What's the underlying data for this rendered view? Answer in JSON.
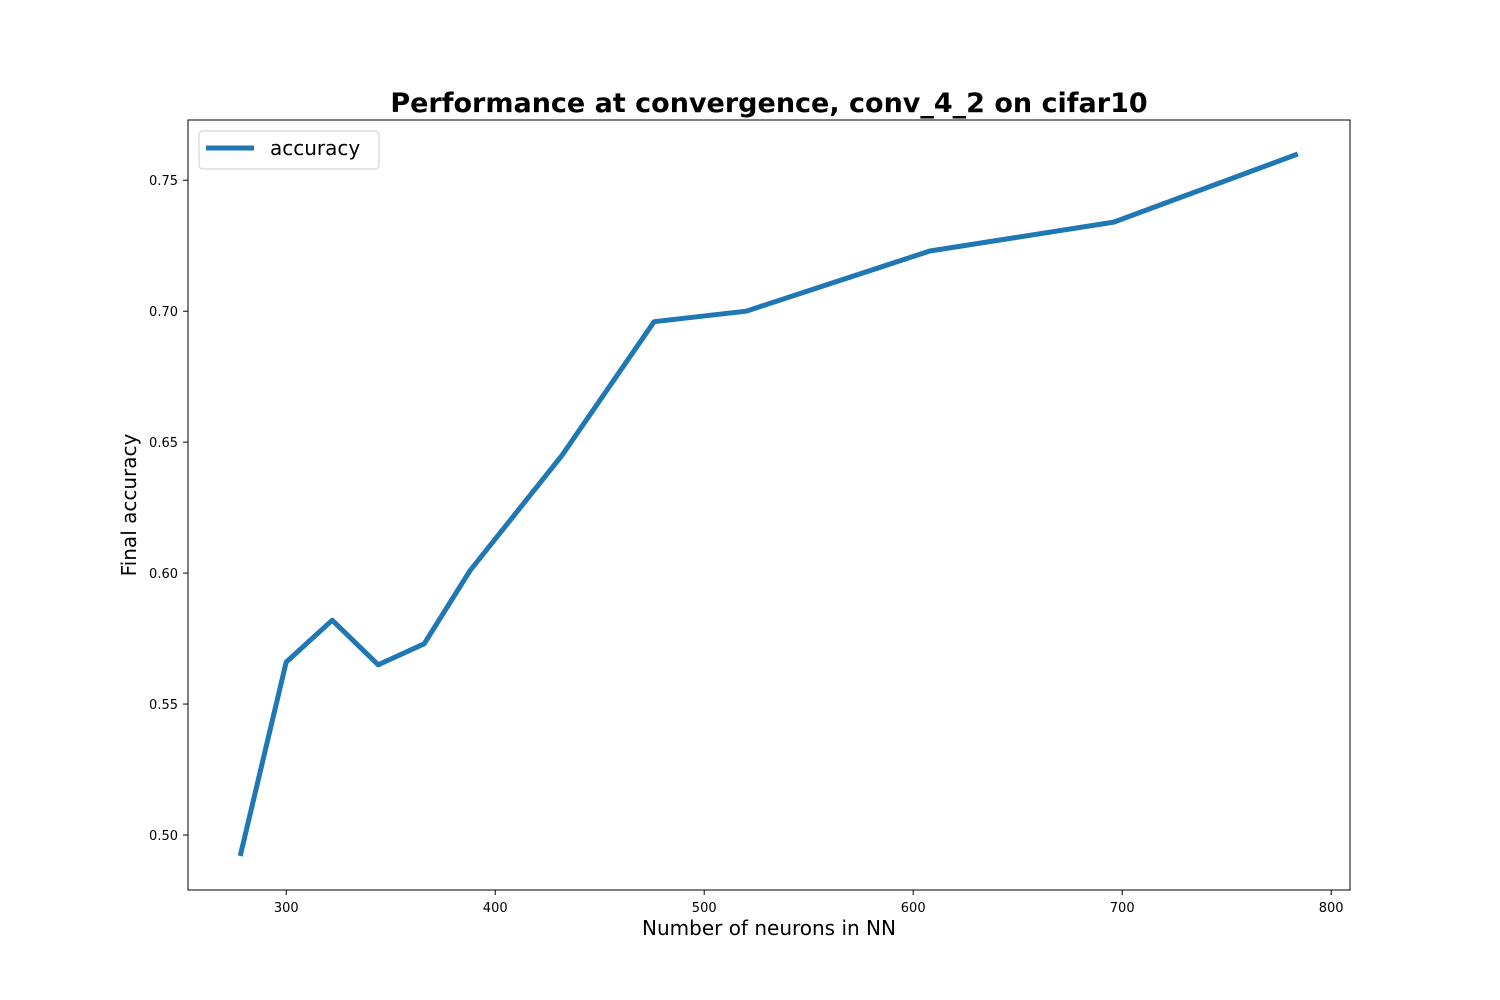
{
  "chart_data": {
    "type": "line",
    "title": "Performance at convergence, conv_4_2 on cifar10",
    "xlabel": "Number of neurons in NN",
    "ylabel": "Final accuracy",
    "xlim": [
      253,
      809
    ],
    "ylim": [
      0.479,
      0.773
    ],
    "xticks": [
      300,
      400,
      500,
      600,
      700,
      800
    ],
    "yticks": [
      0.5,
      0.55,
      0.6,
      0.65,
      0.7,
      0.75
    ],
    "xtick_labels": [
      "300",
      "400",
      "500",
      "600",
      "700",
      "800"
    ],
    "ytick_labels": [
      "0.50",
      "0.55",
      "0.60",
      "0.65",
      "0.70",
      "0.75"
    ],
    "grid": false,
    "legend_position": "top-left",
    "series": [
      {
        "name": "accuracy",
        "color": "#1f77b4",
        "x": [
          278,
          300,
          322,
          344,
          366,
          388,
          432,
          476,
          520,
          608,
          696,
          784
        ],
        "y": [
          0.492,
          0.566,
          0.582,
          0.565,
          0.573,
          0.601,
          0.645,
          0.696,
          0.7,
          0.723,
          0.734,
          0.76
        ]
      }
    ]
  }
}
